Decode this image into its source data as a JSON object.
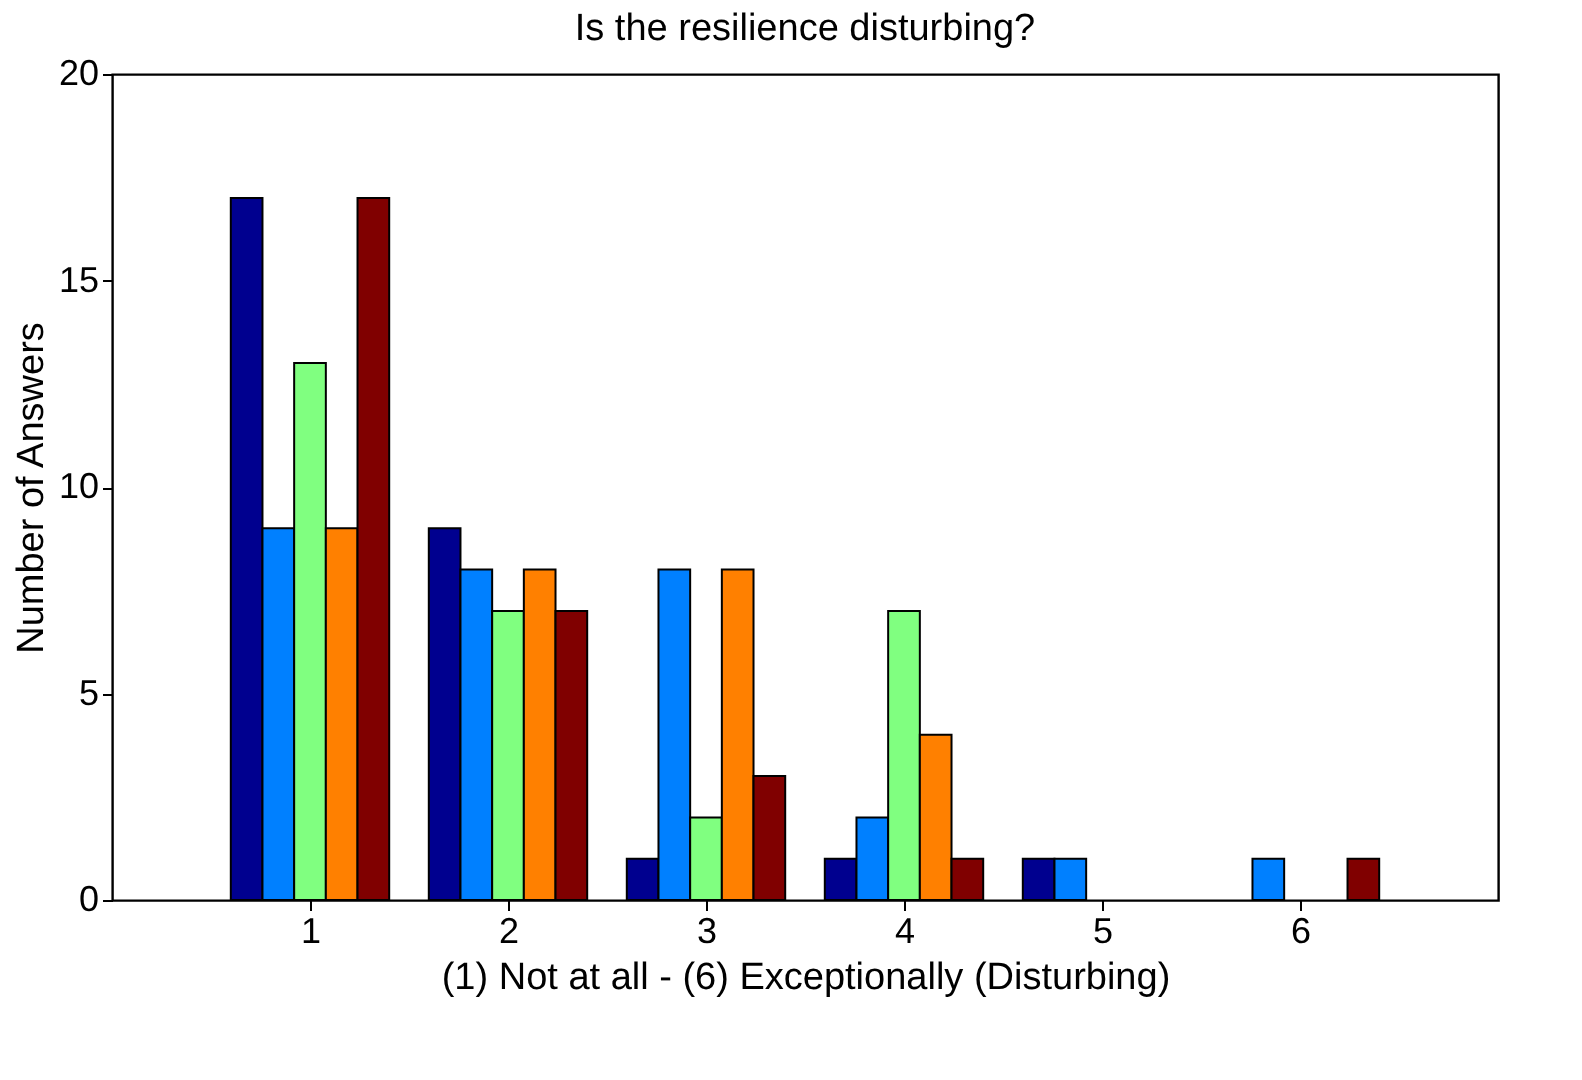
{
  "chart_data": {
    "type": "bar",
    "title": "Is the resilience disturbing?",
    "xlabel": "(1) Not at all - (6) Exceptionally (Disturbing)",
    "ylabel": "Number of Answers",
    "x": [
      1,
      2,
      3,
      4,
      5,
      6
    ],
    "series": [
      {
        "color": "#00008f",
        "values": [
          17,
          9,
          1,
          1,
          1,
          0
        ]
      },
      {
        "color": "#0080ff",
        "values": [
          9,
          8,
          8,
          2,
          1,
          1
        ]
      },
      {
        "color": "#80ff80",
        "values": [
          13,
          7,
          2,
          7,
          0,
          0
        ]
      },
      {
        "color": "#ff8000",
        "values": [
          9,
          8,
          8,
          4,
          0,
          0
        ]
      },
      {
        "color": "#800000",
        "values": [
          17,
          7,
          3,
          1,
          0,
          1
        ]
      }
    ],
    "xlim": [
      0,
      7
    ],
    "xticks": [
      1,
      2,
      3,
      4,
      5,
      6
    ],
    "ylim": [
      0,
      20
    ],
    "yticks": [
      0,
      5,
      10,
      15,
      20
    ],
    "grid": false
  }
}
